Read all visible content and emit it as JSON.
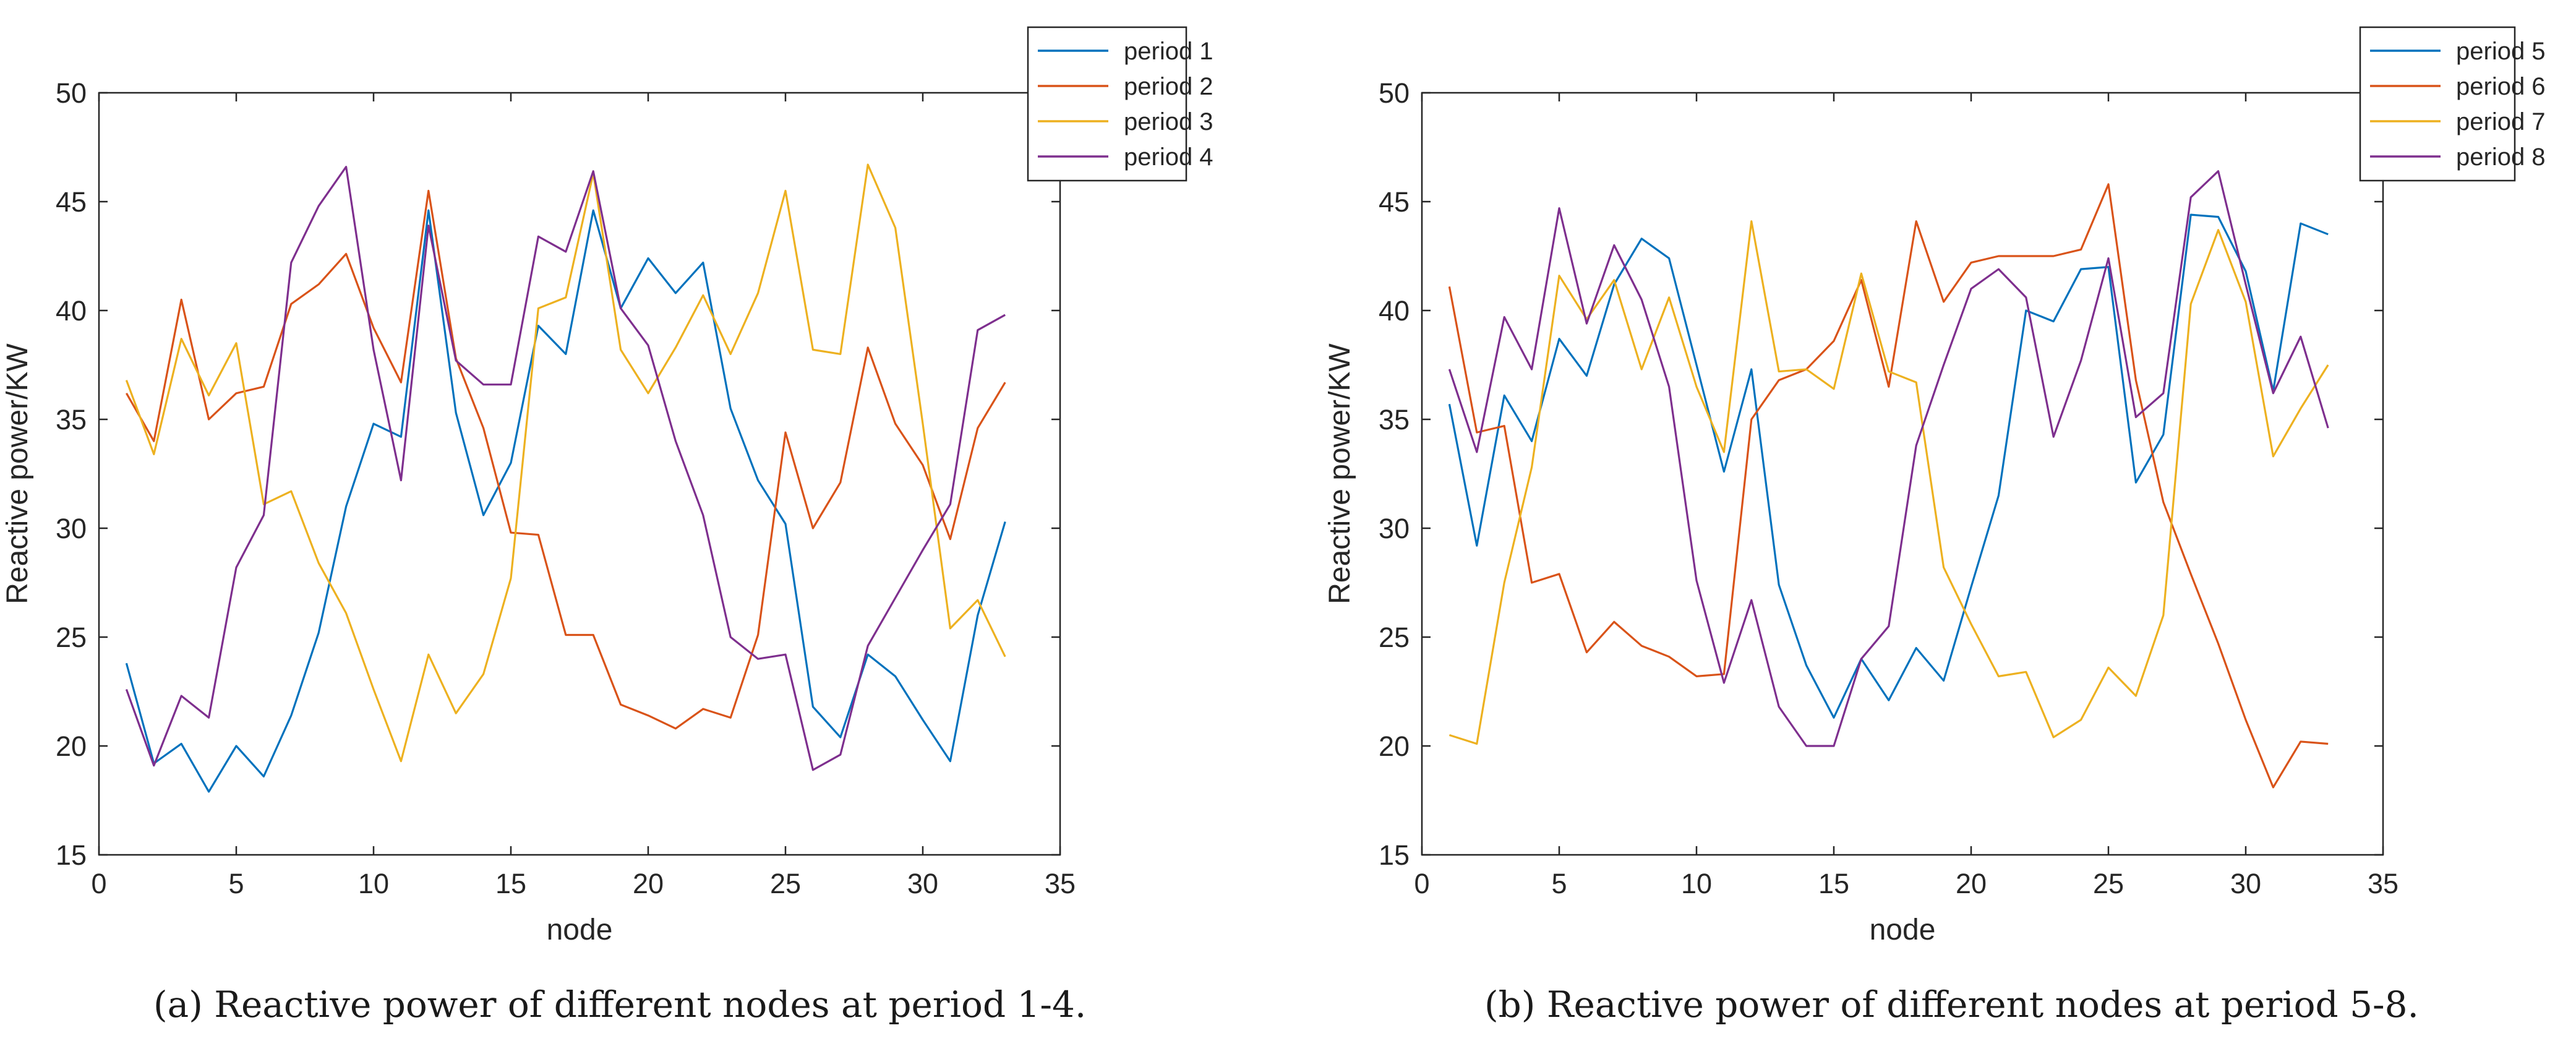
{
  "chart_data": [
    {
      "type": "line",
      "title": "",
      "xlabel": "node",
      "ylabel": "Reactive power/KW",
      "xlim": [
        0,
        35
      ],
      "ylim": [
        15,
        50
      ],
      "xticks": [
        0,
        5,
        10,
        15,
        20,
        25,
        30,
        35
      ],
      "yticks": [
        15,
        20,
        25,
        30,
        35,
        40,
        45,
        50
      ],
      "grid": false,
      "legend_position": "top-right",
      "x": [
        1,
        2,
        3,
        4,
        5,
        6,
        7,
        8,
        9,
        10,
        11,
        12,
        13,
        14,
        15,
        16,
        17,
        18,
        19,
        20,
        21,
        22,
        23,
        24,
        25,
        26,
        27,
        28,
        29,
        30,
        31,
        32,
        33
      ],
      "series": [
        {
          "name": "period 1",
          "color": "#0072BD",
          "values": [
            23.8,
            19.2,
            20.1,
            17.9,
            20.0,
            18.6,
            21.4,
            25.2,
            31.0,
            34.8,
            34.2,
            44.6,
            35.3,
            30.6,
            33.0,
            39.3,
            38.0,
            44.6,
            40.1,
            42.4,
            40.8,
            42.2,
            35.5,
            32.2,
            30.2,
            21.8,
            20.4,
            24.2,
            23.2,
            21.2,
            19.3,
            26.0,
            30.3
          ]
        },
        {
          "name": "period 2",
          "color": "#D95319",
          "values": [
            36.2,
            34.0,
            40.5,
            35.0,
            36.2,
            36.5,
            40.3,
            41.2,
            42.6,
            39.2,
            36.7,
            45.5,
            37.8,
            34.6,
            29.8,
            29.7,
            25.1,
            25.1,
            21.9,
            21.4,
            20.8,
            21.7,
            21.3,
            25.1,
            34.4,
            30.0,
            32.1,
            38.3,
            34.8,
            32.9,
            29.5,
            34.6,
            36.7
          ]
        },
        {
          "name": "period 3",
          "color": "#EDB120",
          "values": [
            36.8,
            33.4,
            38.7,
            36.1,
            38.5,
            31.1,
            31.7,
            28.4,
            26.1,
            22.6,
            19.3,
            24.2,
            21.5,
            23.3,
            27.7,
            40.1,
            40.6,
            46.3,
            38.2,
            36.2,
            38.3,
            40.7,
            38.0,
            40.8,
            45.5,
            38.2,
            38.0,
            46.7,
            43.8,
            34.8,
            25.4,
            26.7,
            24.1
          ]
        },
        {
          "name": "period 4",
          "color": "#7E2F8E",
          "values": [
            22.6,
            19.1,
            22.3,
            21.3,
            28.2,
            30.6,
            42.2,
            44.8,
            46.6,
            38.2,
            32.2,
            43.9,
            37.7,
            36.6,
            36.6,
            43.4,
            42.7,
            46.4,
            40.1,
            38.4,
            34.0,
            30.6,
            25.0,
            24.0,
            24.2,
            18.9,
            19.6,
            24.6,
            26.8,
            29.0,
            31.1,
            39.1,
            39.8
          ]
        }
      ]
    },
    {
      "type": "line",
      "title": "",
      "xlabel": "node",
      "ylabel": "Reactive power/KW",
      "xlim": [
        0,
        35
      ],
      "ylim": [
        15,
        50
      ],
      "xticks": [
        0,
        5,
        10,
        15,
        20,
        25,
        30,
        35
      ],
      "yticks": [
        15,
        20,
        25,
        30,
        35,
        40,
        45,
        50
      ],
      "grid": false,
      "legend_position": "top-right",
      "x": [
        1,
        2,
        3,
        4,
        5,
        6,
        7,
        8,
        9,
        10,
        11,
        12,
        13,
        14,
        15,
        16,
        17,
        18,
        19,
        20,
        21,
        22,
        23,
        24,
        25,
        26,
        27,
        28,
        29,
        30,
        31,
        32,
        33
      ],
      "series": [
        {
          "name": "period 5",
          "color": "#0072BD",
          "values": [
            35.7,
            29.2,
            36.1,
            34.0,
            38.7,
            37.0,
            41.2,
            43.3,
            42.4,
            37.5,
            32.6,
            37.3,
            27.4,
            23.7,
            21.3,
            24.0,
            22.1,
            24.5,
            23.0,
            27.3,
            31.5,
            40.0,
            39.5,
            41.9,
            42.0,
            32.1,
            34.3,
            44.4,
            44.3,
            41.8,
            36.3,
            44.0,
            43.5
          ]
        },
        {
          "name": "period 6",
          "color": "#D95319",
          "values": [
            41.1,
            34.4,
            34.7,
            27.5,
            27.9,
            24.3,
            25.7,
            24.6,
            24.1,
            23.2,
            23.3,
            35.0,
            36.8,
            37.3,
            38.6,
            41.4,
            36.5,
            44.1,
            40.4,
            42.2,
            42.5,
            42.5,
            42.5,
            42.8,
            45.8,
            36.8,
            31.2,
            27.9,
            24.7,
            21.2,
            18.1,
            20.2,
            20.1
          ]
        },
        {
          "name": "period 7",
          "color": "#EDB120",
          "values": [
            20.5,
            20.1,
            27.5,
            32.8,
            41.6,
            39.6,
            41.4,
            37.3,
            40.6,
            36.5,
            33.5,
            44.1,
            37.2,
            37.3,
            36.4,
            41.7,
            37.2,
            36.7,
            28.2,
            25.6,
            23.2,
            23.4,
            20.4,
            21.2,
            23.6,
            22.3,
            26.0,
            40.3,
            43.7,
            40.4,
            33.3,
            35.5,
            37.5
          ]
        },
        {
          "name": "period 8",
          "color": "#7E2F8E",
          "values": [
            37.3,
            33.5,
            39.7,
            37.3,
            44.7,
            39.4,
            43.0,
            40.5,
            36.5,
            27.6,
            22.9,
            26.7,
            21.8,
            20.0,
            20.0,
            24.0,
            25.5,
            33.8,
            37.5,
            41.0,
            41.9,
            40.6,
            34.2,
            37.7,
            42.4,
            35.1,
            36.2,
            45.2,
            46.4,
            41.2,
            36.2,
            38.8,
            34.6
          ]
        }
      ]
    }
  ],
  "captions": {
    "a": "(a)  Reactive power of different nodes at period 1-4.",
    "b": "(b)  Reactive power of different nodes at period 5-8."
  }
}
